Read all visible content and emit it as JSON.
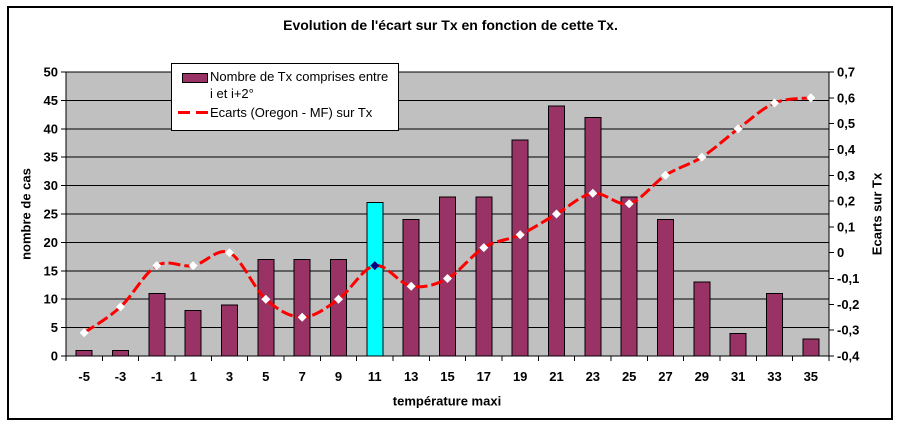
{
  "chart": {
    "title": "Evolution de l'écart sur Tx en fonction de cette Tx.",
    "background_color": "#FFFFFF",
    "plot_background_color": "#C0C0C0",
    "grid_color": "#000000"
  },
  "legend": {
    "items": [
      {
        "label": "Nombre de Tx comprises entre i et i+2°",
        "type": "bar-swatch",
        "color": "#993366"
      },
      {
        "label": "Ecarts (Oregon - MF) sur Tx",
        "type": "dashed-line",
        "color": "#FF0000"
      }
    ]
  },
  "chart_data": {
    "type": "combo",
    "title": "Evolution de l'écart sur Tx en fonction de cette Tx.",
    "categories": [
      -5,
      -3,
      -1,
      1,
      3,
      5,
      7,
      9,
      11,
      13,
      15,
      17,
      19,
      21,
      23,
      25,
      27,
      29,
      31,
      33,
      35
    ],
    "series": [
      {
        "name": "Nombre de Tx comprises entre i et i+2°",
        "type": "bar",
        "axis": "left",
        "color": "#993366",
        "border_color": "#000000",
        "values": [
          1,
          1,
          11,
          8,
          9,
          17,
          17,
          17,
          27,
          24,
          28,
          28,
          38,
          44,
          42,
          28,
          24,
          13,
          4,
          11,
          3
        ],
        "highlight": {
          "index": 8,
          "color": "#00FFFF"
        }
      },
      {
        "name": "Ecarts (Oregon - MF) sur Tx",
        "type": "line",
        "axis": "right",
        "color": "#FF0000",
        "style": "dashed-smooth",
        "marker": "diamond",
        "marker_color": "#FFFFFF",
        "values": [
          -0.31,
          -0.21,
          -0.05,
          -0.05,
          0.0,
          -0.18,
          -0.25,
          -0.18,
          -0.05,
          -0.13,
          -0.1,
          0.02,
          0.07,
          0.15,
          0.23,
          0.19,
          0.3,
          0.37,
          0.48,
          0.58,
          0.6
        ],
        "highlight": {
          "index": 8,
          "marker_color": "#000080"
        }
      }
    ],
    "x_axis": {
      "label": "température maxi",
      "tick_labels": [
        "-5",
        "-3",
        "-1",
        "1",
        "3",
        "5",
        "7",
        "9",
        "11",
        "13",
        "15",
        "17",
        "19",
        "21",
        "23",
        "25",
        "27",
        "29",
        "31",
        "33",
        "35"
      ]
    },
    "y_left": {
      "label": "nombre de cas",
      "min": 0,
      "max": 50,
      "step": 5,
      "tick_labels_top_to_bottom": [
        "50",
        "45",
        "40",
        "35",
        "30",
        "25",
        "20",
        "15",
        "10",
        "5",
        "0"
      ]
    },
    "y_right": {
      "label": "Ecarts sur Tx",
      "min": -0.4,
      "max": 0.7,
      "step": 0.1,
      "tick_labels_top_to_bottom": [
        "0,7",
        "0,6",
        "0,5",
        "0,4",
        "0,3",
        "0,2",
        "0,1",
        "0",
        "-0,1",
        "-0,2",
        "-0,3",
        "-0,4"
      ]
    },
    "grid": "horizontal"
  }
}
